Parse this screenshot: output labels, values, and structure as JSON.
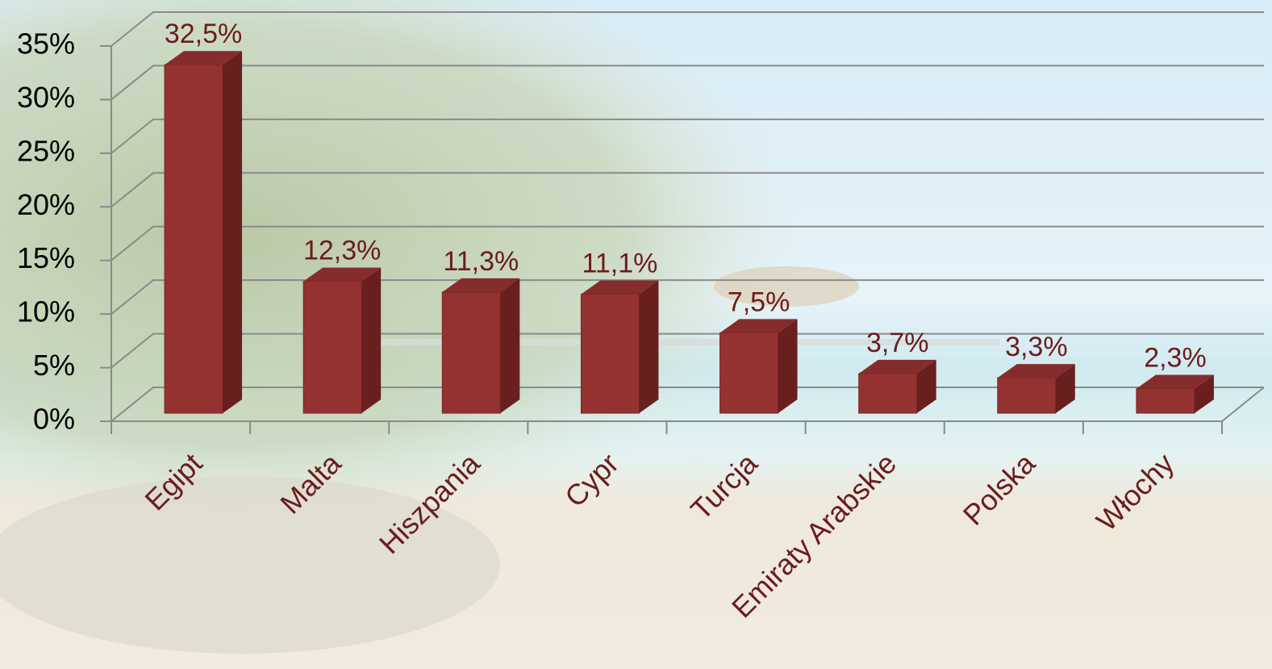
{
  "chart_data": {
    "type": "bar3d",
    "categories": [
      "Egipt",
      "Malta",
      "Hiszpania",
      "Cypr",
      "Turcja",
      "Emiraty Arabskie",
      "Polska",
      "Włochy"
    ],
    "values": [
      32.5,
      12.3,
      11.3,
      11.1,
      7.5,
      3.7,
      3.3,
      2.3
    ],
    "value_labels": [
      "32,5%",
      "12,3%",
      "11,3%",
      "11,1%",
      "7,5%",
      "3,7%",
      "3,3%",
      "2,3%"
    ],
    "color": "#943232",
    "ylim": [
      0,
      35
    ],
    "yticks": [
      {
        "value": 0,
        "label": "0%"
      },
      {
        "value": 5,
        "label": "5%"
      },
      {
        "value": 10,
        "label": "10%"
      },
      {
        "value": 15,
        "label": "15%"
      },
      {
        "value": 20,
        "label": "20%"
      },
      {
        "value": 25,
        "label": "25%"
      },
      {
        "value": 30,
        "label": "30%"
      },
      {
        "value": 35,
        "label": "35%"
      }
    ],
    "grid": true
  }
}
